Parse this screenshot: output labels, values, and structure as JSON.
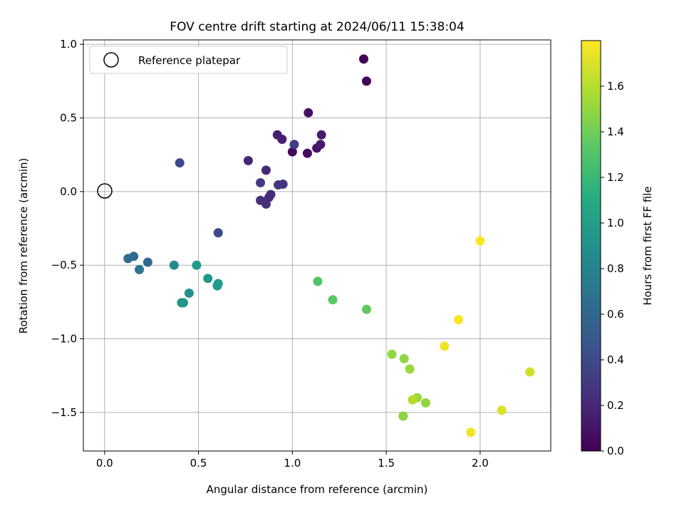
{
  "chart_data": {
    "type": "scatter",
    "title": "FOV centre drift starting at 2024/06/11 15:38:04",
    "xlabel": "Angular distance from reference (arcmin)",
    "ylabel": "Rotation from reference (arcmin)",
    "xlim": [
      -0.113,
      2.376
    ],
    "ylim": [
      -1.762,
      1.03
    ],
    "x_ticks": [
      0.0,
      0.5,
      1.0,
      1.5,
      2.0
    ],
    "x_tick_labels": [
      "0.0",
      "0.5",
      "1.0",
      "1.5",
      "2.0"
    ],
    "y_ticks": [
      -1.5,
      -1.0,
      -0.5,
      0.0,
      0.5,
      1.0
    ],
    "y_tick_labels": [
      "−1.5",
      "−1.0",
      "−0.5",
      "0.0",
      "0.5",
      "1.0"
    ],
    "grid": true,
    "legend": {
      "placement": "upper-left",
      "entries": [
        "Reference platepar"
      ]
    },
    "reference_point": {
      "x": 0.0,
      "y": 0.0,
      "label": "Reference platepar"
    },
    "colorbar": {
      "label": "Hours from first FF file",
      "colormap": "viridis",
      "range": [
        0.0,
        1.8
      ],
      "ticks": [
        0.0,
        0.2,
        0.4,
        0.6,
        0.8,
        1.0,
        1.2,
        1.4,
        1.6
      ],
      "tick_labels": [
        "0.0",
        "0.2",
        "0.4",
        "0.6",
        "0.8",
        "1.0",
        "1.2",
        "1.4",
        "1.6"
      ]
    },
    "points": [
      {
        "x": 1.38,
        "y": 0.9,
        "c": 0.0
      },
      {
        "x": 1.395,
        "y": 0.75,
        "c": 0.01
      },
      {
        "x": 1.0,
        "y": 0.27,
        "c": 0.03
      },
      {
        "x": 1.08,
        "y": 0.26,
        "c": 0.05
      },
      {
        "x": 1.085,
        "y": 0.535,
        "c": 0.07
      },
      {
        "x": 1.13,
        "y": 0.295,
        "c": 0.1
      },
      {
        "x": 1.15,
        "y": 0.32,
        "c": 0.12
      },
      {
        "x": 1.155,
        "y": 0.385,
        "c": 0.14
      },
      {
        "x": 0.92,
        "y": 0.385,
        "c": 0.15
      },
      {
        "x": 0.945,
        "y": 0.355,
        "c": 0.16
      },
      {
        "x": 0.765,
        "y": 0.21,
        "c": 0.18
      },
      {
        "x": 0.86,
        "y": 0.145,
        "c": 0.2
      },
      {
        "x": 0.885,
        "y": -0.02,
        "c": 0.22
      },
      {
        "x": 0.875,
        "y": -0.04,
        "c": 0.23
      },
      {
        "x": 0.83,
        "y": -0.06,
        "c": 0.24
      },
      {
        "x": 0.86,
        "y": -0.085,
        "c": 0.25
      },
      {
        "x": 0.925,
        "y": 0.045,
        "c": 0.27
      },
      {
        "x": 0.95,
        "y": 0.05,
        "c": 0.28
      },
      {
        "x": 0.83,
        "y": 0.06,
        "c": 0.3
      },
      {
        "x": 1.01,
        "y": 0.32,
        "c": 0.33
      },
      {
        "x": 0.605,
        "y": -0.28,
        "c": 0.4
      },
      {
        "x": 0.4,
        "y": 0.195,
        "c": 0.4
      },
      {
        "x": 0.23,
        "y": -0.48,
        "c": 0.6
      },
      {
        "x": 0.155,
        "y": -0.44,
        "c": 0.62
      },
      {
        "x": 0.125,
        "y": -0.455,
        "c": 0.64
      },
      {
        "x": 0.185,
        "y": -0.53,
        "c": 0.7
      },
      {
        "x": 0.37,
        "y": -0.5,
        "c": 0.85
      },
      {
        "x": 0.49,
        "y": -0.5,
        "c": 0.95
      },
      {
        "x": 0.45,
        "y": -0.69,
        "c": 0.9
      },
      {
        "x": 0.41,
        "y": -0.755,
        "c": 0.92
      },
      {
        "x": 0.42,
        "y": -0.755,
        "c": 0.94
      },
      {
        "x": 0.55,
        "y": -0.59,
        "c": 0.96
      },
      {
        "x": 0.605,
        "y": -0.625,
        "c": 0.98
      },
      {
        "x": 0.6,
        "y": -0.64,
        "c": 1.0
      },
      {
        "x": 1.135,
        "y": -0.61,
        "c": 1.3
      },
      {
        "x": 1.215,
        "y": -0.735,
        "c": 1.33
      },
      {
        "x": 1.395,
        "y": -0.8,
        "c": 1.35
      },
      {
        "x": 1.53,
        "y": -1.105,
        "c": 1.5
      },
      {
        "x": 1.595,
        "y": -1.135,
        "c": 1.5
      },
      {
        "x": 1.625,
        "y": -1.205,
        "c": 1.52
      },
      {
        "x": 1.59,
        "y": -1.525,
        "c": 1.48
      },
      {
        "x": 1.665,
        "y": -1.4,
        "c": 1.53
      },
      {
        "x": 1.64,
        "y": -1.415,
        "c": 1.6
      },
      {
        "x": 1.71,
        "y": -1.435,
        "c": 1.5
      },
      {
        "x": 2.265,
        "y": -1.225,
        "c": 1.67
      },
      {
        "x": 2.115,
        "y": -1.485,
        "c": 1.7
      },
      {
        "x": 1.81,
        "y": -1.05,
        "c": 1.76
      },
      {
        "x": 1.885,
        "y": -0.87,
        "c": 1.78
      },
      {
        "x": 1.95,
        "y": -1.635,
        "c": 1.76
      },
      {
        "x": 2.0,
        "y": -0.335,
        "c": 1.79
      }
    ]
  }
}
